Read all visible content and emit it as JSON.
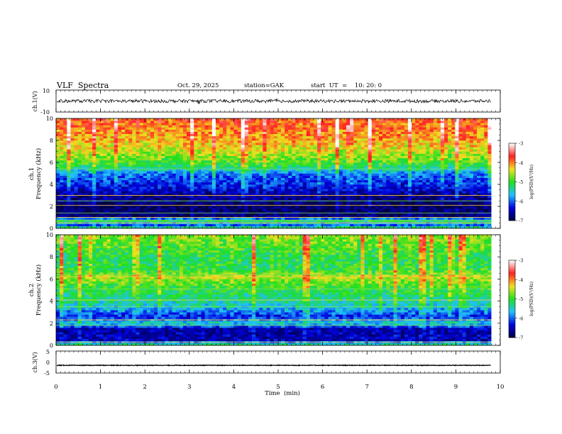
{
  "header": {
    "title": "VLF  Spectra",
    "date": "Oct. 29, 2025",
    "station": "station=GAK",
    "start": "start  UT  =    10: 20: 0"
  },
  "colorbar": {
    "label": "log(PSD)(V²/Hz)",
    "ticks": [
      "-3",
      "-4",
      "-5",
      "-6",
      "-7"
    ],
    "colors": [
      "#ffffff",
      "#ff2020",
      "#f0e020",
      "#20e020",
      "#20c0ff",
      "#0000e0",
      "#000040"
    ]
  },
  "chart_data": [
    {
      "type": "line",
      "name": "ch1-waveform",
      "ylabel": "ch.1(V)",
      "ylim": [
        -10,
        10
      ],
      "yticks": [
        "10",
        "-10"
      ],
      "baseline": 0,
      "amplitude": 1.5
    },
    {
      "type": "heatmap",
      "name": "ch1-spectrogram",
      "ylabel": "ch.1\nFrequency  (kHz)",
      "ylabel_lines": [
        "ch.1",
        "Frequency  (kHz)"
      ],
      "ylim": [
        0,
        10
      ],
      "yticks": [
        "0",
        "2",
        "4",
        "6",
        "8",
        "10"
      ],
      "zlim": [
        -7,
        -3
      ],
      "profile": [
        [
          0,
          -5.0
        ],
        [
          0.3,
          -6.0
        ],
        [
          0.8,
          -5.0
        ],
        [
          1.0,
          -6.8
        ],
        [
          2.0,
          -6.9
        ],
        [
          3.0,
          -6.7
        ],
        [
          4.0,
          -6.3
        ],
        [
          5.0,
          -6.0
        ],
        [
          5.5,
          -5.4
        ],
        [
          6.0,
          -5.0
        ],
        [
          7.0,
          -4.6
        ],
        [
          8.0,
          -4.3
        ],
        [
          9.0,
          -4.1
        ],
        [
          10.0,
          -4.0
        ]
      ],
      "lines_khz": [
        0.5,
        0.7,
        1.0,
        1.4,
        2.1,
        2.5,
        3.0,
        5.4
      ]
    },
    {
      "type": "heatmap",
      "name": "ch2-spectrogram",
      "ylabel_lines": [
        "ch.2",
        "Frequency  (kHz)"
      ],
      "ylim": [
        0,
        10
      ],
      "yticks": [
        "0",
        "2",
        "4",
        "6",
        "8",
        "10"
      ],
      "zlim": [
        -7,
        -3
      ],
      "profile": [
        [
          0,
          -5.0
        ],
        [
          0.5,
          -6.5
        ],
        [
          1.5,
          -6.6
        ],
        [
          2.0,
          -5.5
        ],
        [
          2.6,
          -6.3
        ],
        [
          3.5,
          -5.6
        ],
        [
          4.5,
          -5.3
        ],
        [
          5.5,
          -5.0
        ],
        [
          6.2,
          -4.6
        ],
        [
          6.6,
          -5.0
        ],
        [
          7.0,
          -5.2
        ],
        [
          8.0,
          -5.2
        ],
        [
          9.0,
          -5.0
        ],
        [
          10.0,
          -4.8
        ]
      ],
      "lines_khz": [
        0.3,
        1.8,
        2.3,
        3.5,
        4.1,
        5.1,
        6.2,
        6.4
      ]
    },
    {
      "type": "line",
      "name": "ch3-waveform",
      "ylabel": "ch.3(V)",
      "ylim": [
        -5,
        5
      ],
      "yticks": [
        "5",
        "0",
        "-5"
      ],
      "baseline": -1.5,
      "amplitude": 0.15
    }
  ],
  "x_axis": {
    "label": "Time  (min)",
    "xlim": [
      0,
      10
    ],
    "ticks": [
      "0",
      "1",
      "2",
      "3",
      "4",
      "5",
      "6",
      "7",
      "8",
      "9",
      "10"
    ],
    "data_end": 9.8
  }
}
